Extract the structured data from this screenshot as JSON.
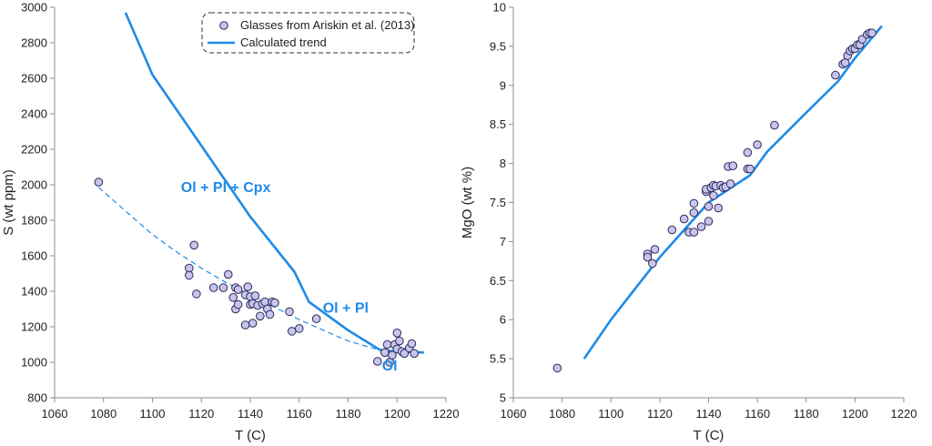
{
  "chart_data": [
    {
      "type": "scatter",
      "xlabel": "T (C)",
      "ylabel": "S (wt ppm)",
      "xlim": [
        1060,
        1220
      ],
      "ylim": [
        800,
        3000
      ],
      "xticks": [
        "1060",
        "1080",
        "1100",
        "1120",
        "1140",
        "1160",
        "1180",
        "1200",
        "1220"
      ],
      "yticks": [
        "800",
        "1000",
        "1200",
        "1400",
        "1600",
        "1800",
        "2000",
        "2200",
        "2400",
        "2600",
        "2800",
        "3000"
      ],
      "legend": {
        "position": "top-right",
        "entries": [
          "Glasses from Ariskin et al. (2013)",
          "Calculated trend"
        ]
      },
      "annotations": [
        {
          "text": "Ol + Pl + Cpx",
          "x": 1130,
          "y": 1960
        },
        {
          "text": "Ol + Pl",
          "x": 1179,
          "y": 1280
        },
        {
          "text": "Ol",
          "x": 1197,
          "y": 955
        }
      ],
      "series": [
        {
          "name": "Glasses from Ariskin et al. (2013)",
          "type": "scatter",
          "x": [
            1078,
            1115,
            1115,
            1117,
            1118,
            1125,
            1129,
            1131,
            1133,
            1134,
            1134,
            1135,
            1135,
            1138,
            1138,
            1139,
            1140,
            1140,
            1141,
            1141,
            1142,
            1143,
            1144,
            1145,
            1146,
            1147,
            1148,
            1149,
            1150,
            1156,
            1157,
            1160,
            1167,
            1192,
            1195,
            1196,
            1197,
            1198,
            1199,
            1200,
            1200,
            1201,
            1202,
            1203,
            1205,
            1206,
            1207
          ],
          "y": [
            2015,
            1530,
            1490,
            1660,
            1385,
            1420,
            1420,
            1495,
            1365,
            1420,
            1300,
            1410,
            1325,
            1380,
            1210,
            1425,
            1370,
            1325,
            1220,
            1330,
            1375,
            1320,
            1260,
            1330,
            1340,
            1300,
            1270,
            1340,
            1335,
            1285,
            1175,
            1190,
            1245,
            1005,
            1055,
            1100,
            1000,
            1040,
            1100,
            1165,
            1075,
            1120,
            1060,
            1050,
            1080,
            1105,
            1050
          ]
        },
        {
          "name": "Calculated trend",
          "type": "line",
          "x": [
            1089,
            1100,
            1120,
            1140,
            1158,
            1164,
            1180,
            1193,
            1200,
            1211
          ],
          "y": [
            2970,
            2620,
            2220,
            1820,
            1510,
            1340,
            1180,
            1070,
            1060,
            1055
          ]
        },
        {
          "name": "",
          "type": "dashed-fit",
          "x": [
            1078,
            1090,
            1100,
            1110,
            1120,
            1130,
            1140,
            1150,
            1160,
            1170,
            1180,
            1190,
            1200
          ],
          "y": [
            1985,
            1840,
            1720,
            1620,
            1530,
            1450,
            1380,
            1310,
            1240,
            1180,
            1120,
            1080,
            1050
          ]
        }
      ]
    },
    {
      "type": "scatter",
      "xlabel": "T (C)",
      "ylabel": "MgO (wt %)",
      "xlim": [
        1060,
        1220
      ],
      "ylim": [
        5,
        10
      ],
      "xticks": [
        "1060",
        "1080",
        "1100",
        "1120",
        "1140",
        "1160",
        "1180",
        "1200",
        "1220"
      ],
      "yticks": [
        "5",
        "5.5",
        "6",
        "6.5",
        "7",
        "7.5",
        "8",
        "8.5",
        "9",
        "9.5",
        "10"
      ],
      "series": [
        {
          "name": "Glasses from Ariskin et al. (2013)",
          "type": "scatter",
          "x": [
            1078,
            1115,
            1115,
            1117,
            1118,
            1125,
            1130,
            1132,
            1134,
            1134,
            1134,
            1137,
            1139,
            1139,
            1140,
            1140,
            1141,
            1142,
            1142,
            1143,
            1144,
            1145,
            1146,
            1147,
            1148,
            1149,
            1150,
            1156,
            1156,
            1157,
            1160,
            1167,
            1192,
            1195,
            1196,
            1197,
            1198,
            1199,
            1200,
            1201,
            1202,
            1203,
            1205,
            1206,
            1207
          ],
          "y": [
            5.38,
            6.84,
            6.8,
            6.72,
            6.9,
            7.15,
            7.29,
            7.12,
            7.49,
            7.12,
            7.37,
            7.19,
            7.64,
            7.67,
            7.26,
            7.45,
            7.69,
            7.59,
            7.72,
            7.71,
            7.43,
            7.72,
            7.69,
            7.7,
            7.96,
            7.74,
            7.97,
            7.93,
            8.14,
            7.93,
            8.24,
            8.49,
            9.13,
            9.27,
            9.29,
            9.38,
            9.44,
            9.47,
            9.47,
            9.52,
            9.52,
            9.59,
            9.65,
            9.67,
            9.67
          ]
        },
        {
          "name": "Calculated trend",
          "type": "line",
          "x": [
            1089,
            1100,
            1120,
            1140,
            1157,
            1164,
            1180,
            1193,
            1200,
            1211
          ],
          "y": [
            5.5,
            6.0,
            6.8,
            7.5,
            7.85,
            8.15,
            8.65,
            9.05,
            9.35,
            9.76
          ]
        }
      ]
    }
  ],
  "colors": {
    "trend_line": "#1f8be6",
    "marker_fill": "#c8c4ec",
    "marker_stroke": "#2b2b5c",
    "axis": "#8c8c8c",
    "annotation": "#1f8be6"
  }
}
